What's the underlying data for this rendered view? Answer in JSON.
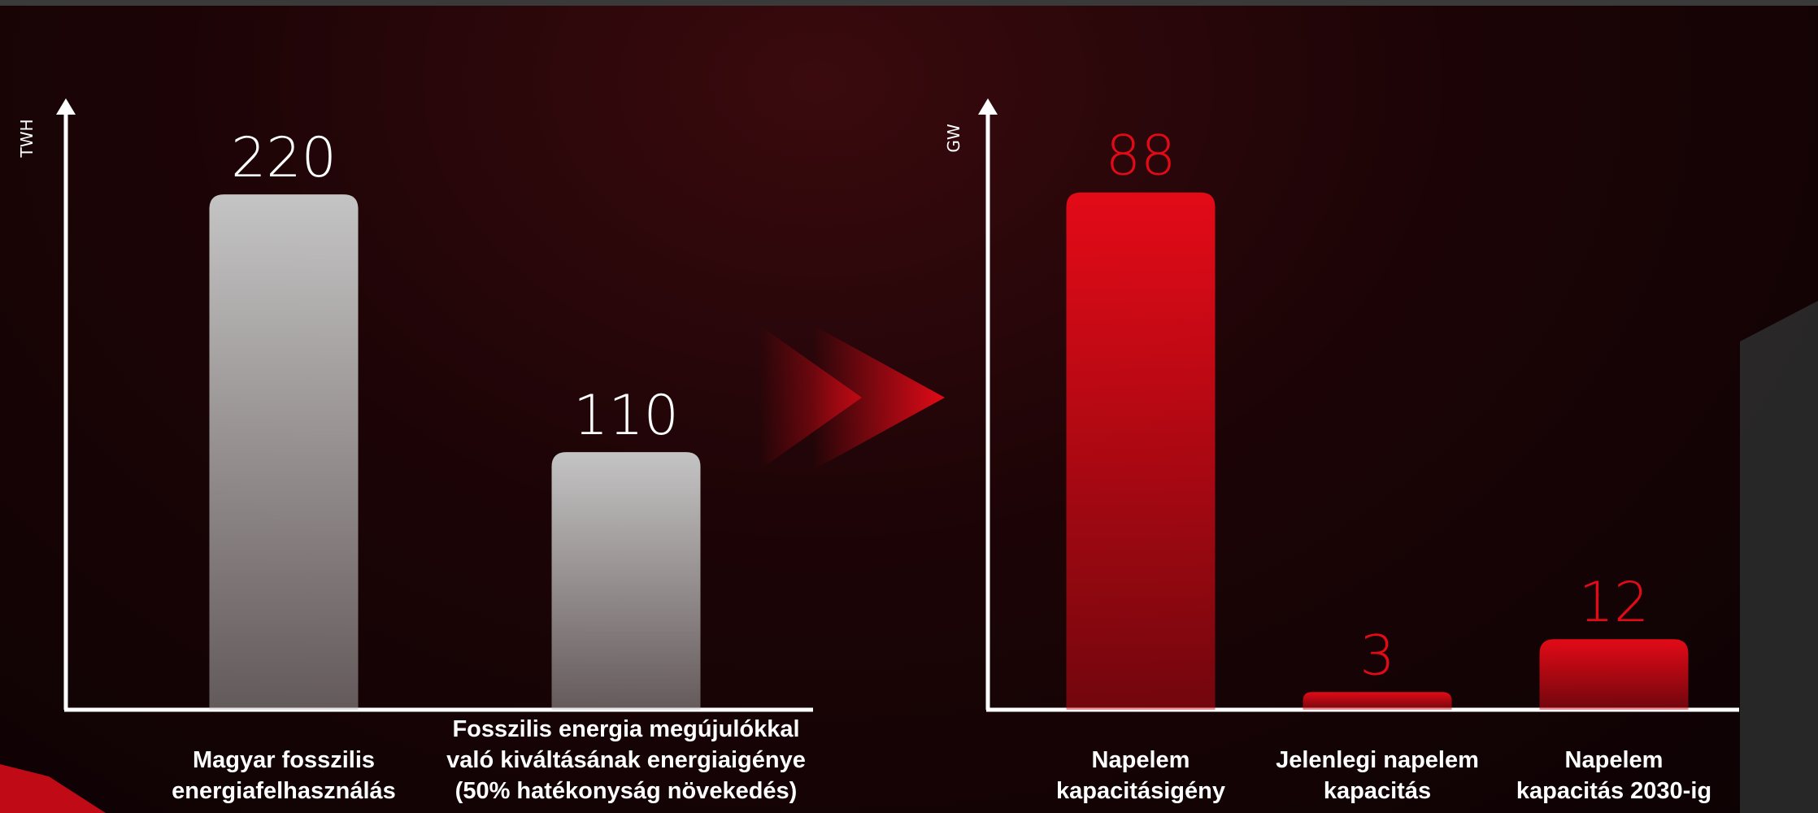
{
  "chart_data": [
    {
      "type": "bar",
      "y_label": "TWH",
      "categories": [
        "Magyar fosszilis\nenergiafelhasználás",
        "Fosszilis energia megújulókkal\nvaló kiváltásának energiaigénye\n(50% hatékonyság növekedés)"
      ],
      "values": [
        220,
        110
      ],
      "color": "#c4c4c4",
      "ylim": [
        0,
        261
      ]
    },
    {
      "type": "bar",
      "y_label": "GW",
      "categories": [
        "Napelem\nkapacitásigény",
        "Jelenlegi napelem\nkapacitás",
        "Napelem\nkapacitás 2030-ig"
      ],
      "values": [
        88,
        3,
        12
      ],
      "color": "#e30a17",
      "ylim": [
        0,
        104
      ]
    }
  ]
}
